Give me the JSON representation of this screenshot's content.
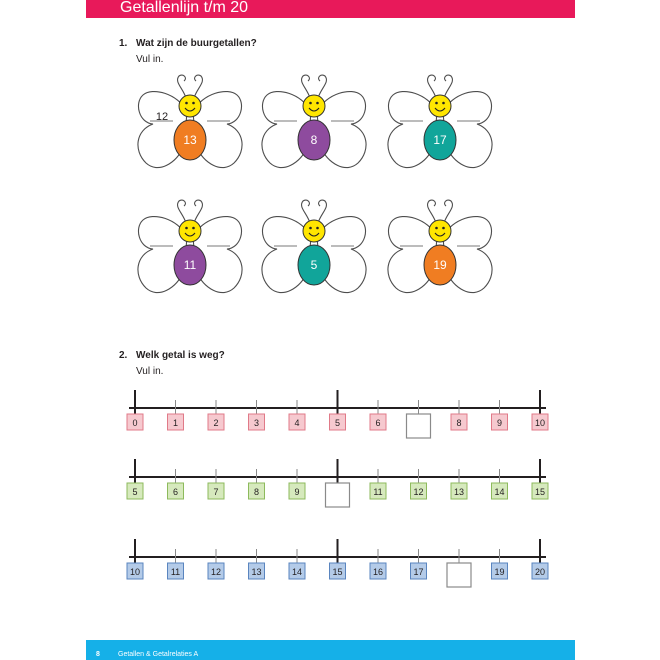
{
  "header": {
    "title": "Getallenlijn t/m 20",
    "color": "#e8195a"
  },
  "question1": {
    "number": "1.",
    "title": "Wat zijn de buurgetallen?",
    "instruction": "Vul in.",
    "butterflies": [
      {
        "number": "13",
        "body_color": "#f07d22",
        "left_answer": "12",
        "right_answer": ""
      },
      {
        "number": "8",
        "body_color": "#8e4b9e",
        "left_answer": "",
        "right_answer": ""
      },
      {
        "number": "17",
        "body_color": "#11a59a",
        "left_answer": "",
        "right_answer": ""
      },
      {
        "number": "11",
        "body_color": "#8e4b9e",
        "left_answer": "",
        "right_answer": ""
      },
      {
        "number": "5",
        "body_color": "#11a59a",
        "left_answer": "",
        "right_answer": ""
      },
      {
        "number": "19",
        "body_color": "#f07d22",
        "left_answer": "",
        "right_answer": ""
      }
    ]
  },
  "question2": {
    "number": "2.",
    "title": "Welk getal is weg?",
    "instruction": "Vul in.",
    "lines": [
      {
        "box_fill": "#f6c9cf",
        "box_stroke": "#e07a88",
        "values": [
          "0",
          "1",
          "2",
          "3",
          "4",
          "5",
          "6",
          "",
          "8",
          "9",
          "10"
        ]
      },
      {
        "box_fill": "#d6e9bd",
        "box_stroke": "#8dba5c",
        "values": [
          "5",
          "6",
          "7",
          "8",
          "9",
          "",
          "11",
          "12",
          "13",
          "14",
          "15"
        ]
      },
      {
        "box_fill": "#b4cbe8",
        "box_stroke": "#5a85bf",
        "values": [
          "10",
          "11",
          "12",
          "13",
          "14",
          "15",
          "16",
          "17",
          "",
          "19",
          "20"
        ]
      }
    ]
  },
  "footer": {
    "page_number": "8",
    "text": "Getallen & Getalrelaties A",
    "color": "#15b0e8"
  }
}
